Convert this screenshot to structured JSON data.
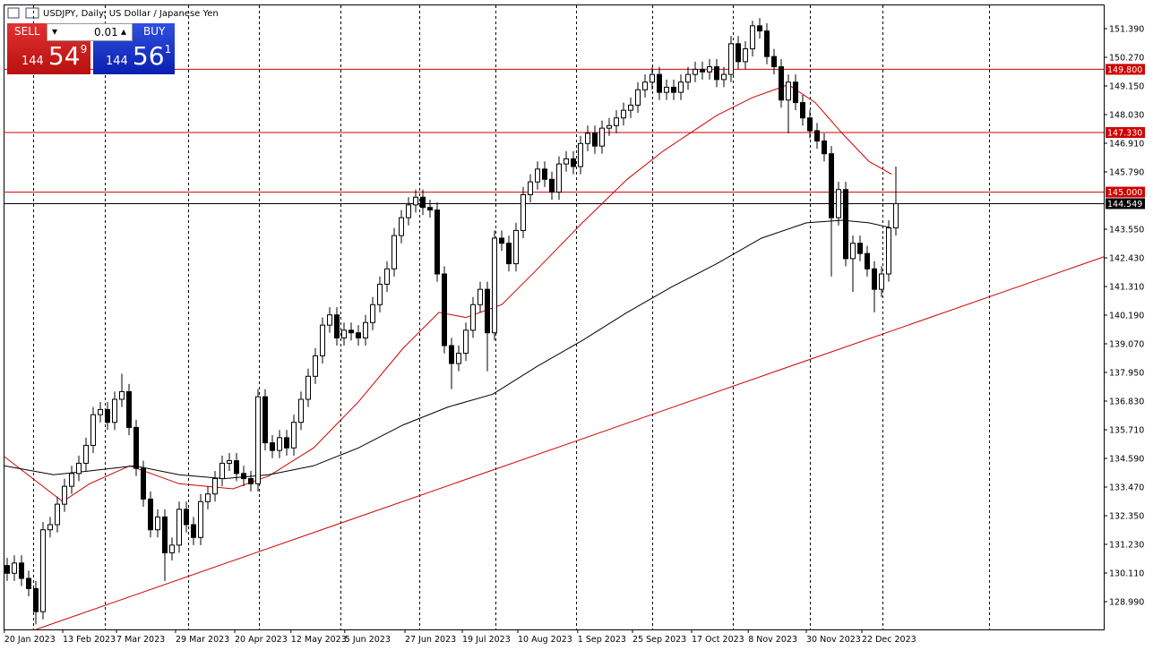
{
  "header": {
    "title": "USDJPY, Daily:  US Dollar / Japanese Yen"
  },
  "trade_panel": {
    "sell": "SELL",
    "buy": "BUY",
    "lot": "0.01",
    "bid": [
      "144",
      "54",
      "9"
    ],
    "ask": [
      "144",
      "56",
      "1"
    ]
  },
  "chart_data": {
    "type": "candlestick",
    "open": [
      130.4,
      130.1,
      130.5,
      129.9,
      129.5,
      128.6,
      131.8,
      132.0,
      132.8,
      133.5,
      134.0,
      134.4,
      135.1,
      136.3,
      136.5,
      136.0,
      136.9,
      137.2,
      135.8,
      134.2,
      133.0,
      131.8,
      132.3,
      130.9,
      131.2,
      132.6,
      132.0,
      131.5,
      132.9,
      133.2,
      133.8,
      134.4,
      134.5,
      134.0,
      133.8,
      133.6,
      137.0,
      135.2,
      134.9,
      135.4,
      135.0,
      136.0,
      136.9,
      137.8,
      138.6,
      139.8,
      140.2,
      139.3,
      139.6,
      139.5,
      139.3,
      139.9,
      140.6,
      141.4,
      142.0,
      143.3,
      144.0,
      144.5,
      144.8,
      144.4,
      144.3,
      141.8,
      139.0,
      138.3,
      138.7,
      139.6,
      140.6,
      141.2,
      139.5,
      143.2,
      143.0,
      142.2,
      143.5,
      144.9,
      145.4,
      145.9,
      145.5,
      145.0,
      146.1,
      146.3,
      146.0,
      146.9,
      147.3,
      146.8,
      147.5,
      147.6,
      147.9,
      148.2,
      148.4,
      149.0,
      149.3,
      149.6,
      148.9,
      149.1,
      148.9,
      149.3,
      149.6,
      149.8,
      149.7,
      149.9,
      149.4,
      149.6,
      150.8,
      150.1,
      150.6,
      151.5,
      151.3,
      150.3,
      149.9,
      148.6,
      149.3,
      148.5,
      147.9,
      147.4,
      147.0,
      146.5,
      144.0,
      145.1,
      142.4,
      143.0,
      142.6,
      142.0,
      141.2,
      141.8,
      143.6
    ],
    "high": [
      130.7,
      130.8,
      130.8,
      130.2,
      129.8,
      132.1,
      132.3,
      133.1,
      133.8,
      134.3,
      134.7,
      135.4,
      136.6,
      136.8,
      136.8,
      137.2,
      137.9,
      137.5,
      136.1,
      134.5,
      133.3,
      132.6,
      132.6,
      131.5,
      132.9,
      132.9,
      132.3,
      133.2,
      133.5,
      134.1,
      134.7,
      134.8,
      134.8,
      134.3,
      134.1,
      137.3,
      137.3,
      135.5,
      135.7,
      135.7,
      136.3,
      137.2,
      138.1,
      138.9,
      140.1,
      140.5,
      140.5,
      139.9,
      139.9,
      139.8,
      140.2,
      140.9,
      141.7,
      142.3,
      143.6,
      144.3,
      144.8,
      145.1,
      145.1,
      144.7,
      144.6,
      142.1,
      139.3,
      139.0,
      139.9,
      140.9,
      141.5,
      141.5,
      143.5,
      143.5,
      143.3,
      143.8,
      145.2,
      145.7,
      146.2,
      146.2,
      145.8,
      146.4,
      146.6,
      146.6,
      147.2,
      147.6,
      147.6,
      147.8,
      147.9,
      148.2,
      148.5,
      148.7,
      149.3,
      149.6,
      149.9,
      149.9,
      149.4,
      149.4,
      149.6,
      149.9,
      150.1,
      150.1,
      150.2,
      150.2,
      149.9,
      151.1,
      151.1,
      150.9,
      151.7,
      151.8,
      151.6,
      150.6,
      150.2,
      149.6,
      149.6,
      148.8,
      148.2,
      147.7,
      147.3,
      146.8,
      145.4,
      145.4,
      143.3,
      143.3,
      142.9,
      142.3,
      142.1,
      143.9,
      146.0
    ],
    "low": [
      129.8,
      129.8,
      129.6,
      129.2,
      128.1,
      128.3,
      131.5,
      131.7,
      132.5,
      133.2,
      133.7,
      134.1,
      134.8,
      136.0,
      135.7,
      135.7,
      136.6,
      135.5,
      133.9,
      132.7,
      131.5,
      131.5,
      129.8,
      130.6,
      130.9,
      131.7,
      131.2,
      131.2,
      132.6,
      132.9,
      133.5,
      134.1,
      133.7,
      133.5,
      133.3,
      133.3,
      134.9,
      134.6,
      134.6,
      134.7,
      134.7,
      135.7,
      136.6,
      137.5,
      138.3,
      139.5,
      139.0,
      139.0,
      139.2,
      139.0,
      139.0,
      139.6,
      140.3,
      141.1,
      141.7,
      143.0,
      143.7,
      144.2,
      144.1,
      144.0,
      141.5,
      138.7,
      137.3,
      138.0,
      138.4,
      139.3,
      140.3,
      138.0,
      139.2,
      142.7,
      141.9,
      141.9,
      143.2,
      144.6,
      145.1,
      145.2,
      144.7,
      144.7,
      145.8,
      145.7,
      145.7,
      146.6,
      146.5,
      146.5,
      147.2,
      147.3,
      147.6,
      147.9,
      148.1,
      148.7,
      149.0,
      148.6,
      148.6,
      148.6,
      148.6,
      149.0,
      149.3,
      149.4,
      149.4,
      149.1,
      149.1,
      149.3,
      149.8,
      149.8,
      150.3,
      151.0,
      150.0,
      149.6,
      148.3,
      147.3,
      148.2,
      147.6,
      147.1,
      146.7,
      146.2,
      141.7,
      143.7,
      142.1,
      141.1,
      142.3,
      141.7,
      140.3,
      140.9,
      141.5,
      143.3
    ],
    "close": [
      130.1,
      130.5,
      129.9,
      129.5,
      128.6,
      131.8,
      132.0,
      132.8,
      133.5,
      134.0,
      134.4,
      135.1,
      136.3,
      136.5,
      136.0,
      136.9,
      137.2,
      135.8,
      134.2,
      133.0,
      131.8,
      132.3,
      130.9,
      131.2,
      132.6,
      132.0,
      131.5,
      132.9,
      133.2,
      133.8,
      134.4,
      134.5,
      134.0,
      133.8,
      133.6,
      137.0,
      135.2,
      134.9,
      135.4,
      135.0,
      136.0,
      136.9,
      137.8,
      138.6,
      139.8,
      140.2,
      139.3,
      139.6,
      139.5,
      139.3,
      139.9,
      140.6,
      141.4,
      142.0,
      143.3,
      144.0,
      144.5,
      144.8,
      144.4,
      144.3,
      141.8,
      139.0,
      138.3,
      138.7,
      139.6,
      140.6,
      141.2,
      139.5,
      143.2,
      143.0,
      142.2,
      143.5,
      144.9,
      145.4,
      145.9,
      145.5,
      145.0,
      146.1,
      146.3,
      146.0,
      146.9,
      147.3,
      146.8,
      147.5,
      147.6,
      147.9,
      148.2,
      148.4,
      149.0,
      149.3,
      149.6,
      148.9,
      149.1,
      148.9,
      149.3,
      149.6,
      149.8,
      149.7,
      149.9,
      149.4,
      149.6,
      150.8,
      150.1,
      150.6,
      151.5,
      151.3,
      150.3,
      149.9,
      148.6,
      149.3,
      148.5,
      147.9,
      147.4,
      147.0,
      146.5,
      144.0,
      145.1,
      142.4,
      143.0,
      142.6,
      142.0,
      141.2,
      141.8,
      143.6,
      144.55
    ],
    "up_color": "#ffffff",
    "down_color": "#000000",
    "candle_outline": "#000000",
    "xlim": [
      -0.5,
      153
    ],
    "ylim": [
      127.905,
      152.335
    ],
    "xticks": [
      {
        "value": -0.4,
        "label": "20 Jan 2023"
      },
      {
        "value": 7.75,
        "label": "13 Feb 2023"
      },
      {
        "value": 15.25,
        "label": "7 Mar 2023"
      },
      {
        "value": 23.5,
        "label": "29 Mar 2023"
      },
      {
        "value": 31.75,
        "label": "20 Apr 2023"
      },
      {
        "value": 39.6,
        "label": "12 May 2023"
      },
      {
        "value": 47.1,
        "label": "5 Jun 2023"
      },
      {
        "value": 55.5,
        "label": "27 Jun 2023"
      },
      {
        "value": 63.5,
        "label": "19 Jul 2023"
      },
      {
        "value": 71.25,
        "label": "10 Aug 2023"
      },
      {
        "value": 79.6,
        "label": "1 Sep 2023"
      },
      {
        "value": 87.25,
        "label": "25 Sep 2023"
      },
      {
        "value": 95.5,
        "label": "17 Oct 2023"
      },
      {
        "value": 103.4,
        "label": "8 Nov 2023"
      },
      {
        "value": 111.5,
        "label": "30 Nov 2023"
      },
      {
        "value": 119.25,
        "label": "22 Dec 2023"
      }
    ],
    "yticks": [
      {
        "value": 128.99,
        "label": "128.990"
      },
      {
        "value": 130.11,
        "label": "130.110"
      },
      {
        "value": 131.23,
        "label": "131.230"
      },
      {
        "value": 132.35,
        "label": "132.350"
      },
      {
        "value": 133.47,
        "label": "133.470"
      },
      {
        "value": 134.59,
        "label": "134.590"
      },
      {
        "value": 135.71,
        "label": "135.710"
      },
      {
        "value": 136.83,
        "label": "136.830"
      },
      {
        "value": 137.95,
        "label": "137.950"
      },
      {
        "value": 139.07,
        "label": "139.070"
      },
      {
        "value": 140.19,
        "label": "140.190"
      },
      {
        "value": 141.31,
        "label": "141.310"
      },
      {
        "value": 142.43,
        "label": "142.430"
      },
      {
        "value": 143.55,
        "label": "143.550"
      },
      {
        "value": 145.79,
        "label": "145.790"
      },
      {
        "value": 146.91,
        "label": "146.910"
      },
      {
        "value": 148.03,
        "label": "148.030"
      },
      {
        "value": 149.15,
        "label": "149.150"
      },
      {
        "value": 150.27,
        "label": "150.270"
      },
      {
        "value": 151.39,
        "label": "151.390"
      }
    ],
    "moving_averages": [
      {
        "color": "#d00000",
        "x": [
          -0.4,
          7.75,
          11.5,
          17.1,
          24,
          31.5,
          36.5,
          42.75,
          49,
          55.25,
          60.25,
          64,
          69,
          74,
          80.25,
          86.5,
          91.5,
          99,
          104,
          109,
          112.75,
          116.5,
          120.25,
          123.4
        ],
        "values": [
          134.66,
          132.9,
          133.6,
          134.3,
          133.6,
          133.4,
          133.9,
          135.0,
          136.8,
          138.9,
          140.3,
          140.1,
          140.6,
          142.0,
          143.8,
          145.5,
          146.6,
          148.0,
          148.7,
          149.2,
          148.5,
          147.3,
          146.2,
          145.7
        ]
      },
      {
        "color": "#000000",
        "x": [
          -0.4,
          6.5,
          11.5,
          17.75,
          24,
          30.25,
          36.5,
          42.75,
          49,
          55.25,
          61.5,
          67.75,
          74,
          80.25,
          86.5,
          92.75,
          99,
          105.25,
          111.5,
          116.5,
          120.25,
          123.4
        ],
        "values": [
          134.3,
          133.95,
          134.1,
          134.3,
          133.95,
          133.8,
          133.95,
          134.3,
          135.0,
          135.9,
          136.6,
          137.1,
          138.2,
          139.2,
          140.3,
          141.3,
          142.2,
          143.2,
          143.8,
          143.9,
          143.8,
          143.6
        ]
      }
    ],
    "trendline": {
      "color": "#d00000",
      "x": [
        4,
        153
      ],
      "values": [
        127.9,
        142.47
      ]
    },
    "levels": [
      {
        "value": 149.8,
        "label": "149.800",
        "color": "#d00000"
      },
      {
        "value": 147.33,
        "label": "147.330",
        "color": "#d00000"
      },
      {
        "value": 145.0,
        "label": "145.000",
        "color": "#d00000"
      }
    ],
    "last_price": {
      "value": 144.549,
      "label": "144.549",
      "color": "#000000"
    }
  }
}
